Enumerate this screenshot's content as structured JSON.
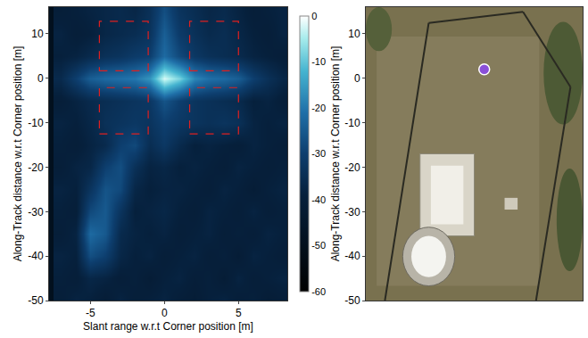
{
  "chart_data": [
    {
      "type": "heatmap",
      "x_label": "Slant range w.r.t Corner position [m]",
      "y_label": "Along-Track distance w.r.t Corner position [m]",
      "xlim": [
        -7.8,
        8.3
      ],
      "ylim": [
        -50,
        16
      ],
      "xticks": [
        -5,
        0,
        5
      ],
      "yticks": [
        10,
        0,
        -10,
        -20,
        -30,
        -40,
        -50
      ],
      "x": [
        -7,
        -6,
        -5,
        -4,
        -3,
        -2,
        -1,
        0,
        1,
        2,
        3,
        4,
        5,
        6,
        7,
        8
      ],
      "y": [
        -50,
        -45,
        -40,
        -35,
        -30,
        -25,
        -20,
        -15,
        -10,
        -5,
        0,
        5,
        10,
        15
      ],
      "z": [
        [
          -40,
          -38,
          -39,
          -41,
          -38,
          -40,
          -39,
          -38,
          -40,
          -41,
          -39,
          -38,
          -40,
          -39,
          -41,
          -40
        ],
        [
          -39,
          -40,
          -37,
          -38,
          -40,
          -39,
          -41,
          -39,
          -38,
          -40,
          -39,
          -41,
          -38,
          -40,
          -39,
          -38
        ],
        [
          -38,
          -39,
          -27,
          -30,
          -37,
          -39,
          -38,
          -40,
          -39,
          -38,
          -40,
          -39,
          -41,
          -38,
          -39,
          -40
        ],
        [
          -40,
          -38,
          -22,
          -25,
          -36,
          -38,
          -39,
          -38,
          -40,
          -39,
          -38,
          -40,
          -39,
          -40,
          -38,
          -39
        ],
        [
          -39,
          -40,
          -28,
          -25,
          -33,
          -39,
          -38,
          -37,
          -39,
          -40,
          -38,
          -39,
          -40,
          -38,
          -40,
          -39
        ],
        [
          -38,
          -39,
          -33,
          -26,
          -28,
          -37,
          -39,
          -38,
          -38,
          -39,
          -40,
          -38,
          -39,
          -41,
          -39,
          -38
        ],
        [
          -40,
          -38,
          -37,
          -30,
          -27,
          -34,
          -38,
          -37,
          -39,
          -38,
          -39,
          -40,
          -38,
          -39,
          -40,
          -39
        ],
        [
          -39,
          -40,
          -38,
          -36,
          -30,
          -28,
          -35,
          -32,
          -36,
          -39,
          -38,
          -39,
          -40,
          -38,
          -39,
          -40
        ],
        [
          -38,
          -39,
          -37,
          -34,
          -33,
          -32,
          -33,
          -30,
          -32,
          -33,
          -34,
          -33,
          -34,
          -38,
          -39,
          -38
        ],
        [
          -40,
          -38,
          -36,
          -35,
          -34,
          -33,
          -32,
          -26,
          -30,
          -33,
          -34,
          -35,
          -36,
          -39,
          -38,
          -40
        ],
        [
          -36,
          -30,
          -24,
          -22,
          -21,
          -20,
          -16,
          -2,
          -8,
          -18,
          -21,
          -22,
          -24,
          -30,
          -34,
          -37
        ],
        [
          -39,
          -38,
          -36,
          -34,
          -33,
          -31,
          -30,
          -22,
          -28,
          -32,
          -34,
          -35,
          -36,
          -38,
          -39,
          -40
        ],
        [
          -38,
          -40,
          -39,
          -37,
          -36,
          -35,
          -33,
          -24,
          -31,
          -34,
          -36,
          -35,
          -37,
          -39,
          -40,
          -38
        ],
        [
          -40,
          -39,
          -38,
          -37,
          -36,
          -37,
          -34,
          -27,
          -33,
          -35,
          -37,
          -36,
          -38,
          -40,
          -39,
          -38
        ]
      ],
      "colorbar_range": [
        -60,
        0
      ],
      "colorbar_ticks": [
        0,
        -10,
        -20,
        -30,
        -40,
        -50,
        -60
      ],
      "regions": [
        {
          "x0": -4.4,
          "x1": -1.1,
          "y0": 1.7,
          "y1": 12.8
        },
        {
          "x0": 1.7,
          "x1": 5,
          "y0": 1.7,
          "y1": 12.8
        },
        {
          "x0": -4.4,
          "x1": -1.1,
          "y0": -12.5,
          "y1": -2.1
        },
        {
          "x0": 1.7,
          "x1": 5,
          "y0": -12.5,
          "y1": -2.1
        }
      ],
      "color": "#e02020",
      "line_style": "dash"
    },
    {
      "type": "map",
      "y_label": "Along-Track distance w.r.t Corner position [m]",
      "xlim": [
        -12,
        14
      ],
      "ylim": [
        -50,
        16
      ],
      "yticks": [
        10,
        0,
        -10,
        -20,
        -30,
        -40,
        -50
      ],
      "tick_labels": "y",
      "pin": {
        "x": 2.2,
        "y": 2
      },
      "color": "#8a4fd8",
      "marker": "circle"
    }
  ]
}
